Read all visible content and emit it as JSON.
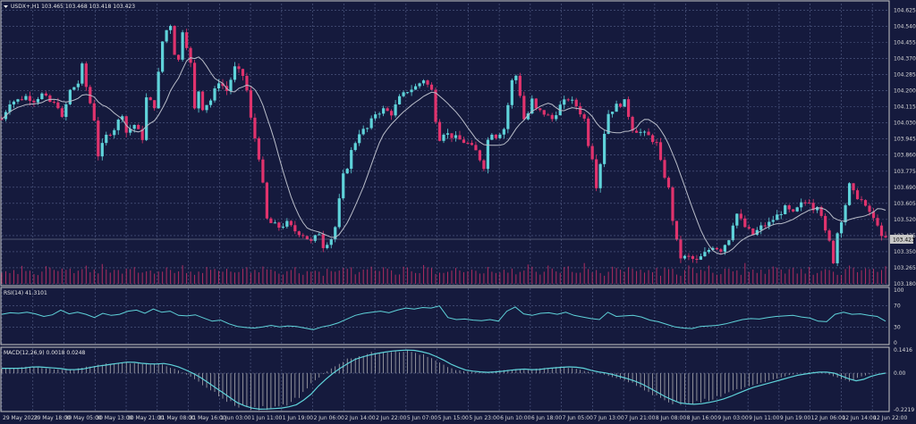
{
  "colors": {
    "background": "#151a3d",
    "frame": "#c8c8c8",
    "grid": "#56608a",
    "bull": "#5fd3da",
    "bear": "#e0336d",
    "ma": "#b9bdc9",
    "volume": "#e0336d",
    "rsi": "#5fd3da",
    "macd_line": "#5fd3da",
    "macd_hist": "#bfbfbf",
    "price_box": "#c8c8c8"
  },
  "price_panel": {
    "header": "USDX+,H1  103.465 103.468 103.418 103.423",
    "menu_icon": "triangle-down-icon",
    "current_price": "103.423",
    "y_ticks": [
      "104.625",
      "104.540",
      "104.455",
      "104.370",
      "104.285",
      "104.200",
      "104.115",
      "104.030",
      "103.945",
      "103.860",
      "103.775",
      "103.690",
      "103.605",
      "103.520",
      "103.435",
      "103.350",
      "103.265",
      "103.180"
    ]
  },
  "rsi_panel": {
    "header": "RSI(14) 41.3101",
    "y_ticks": [
      "100",
      "70",
      "30",
      "0"
    ]
  },
  "macd_panel": {
    "header": "MACD(12,26,9) 0.0018 0.0248",
    "y_ticks": [
      "0.1416",
      "0.00",
      "-0.2219"
    ]
  },
  "x_ticks": [
    "29 May 2023",
    "29 May 18:00",
    "30 May 05:00",
    "30 May 13:00",
    "30 May 21:00",
    "31 May 08:00",
    "31 May 16:00",
    "1 Jun 03:00",
    "1 Jun 11:00",
    "1 Jun 19:00",
    "2 Jun 06:00",
    "2 Jun 14:00",
    "2 Jun 22:00",
    "5 Jun 07:00",
    "5 Jun 15:00",
    "5 Jun 23:00",
    "6 Jun 10:00",
    "6 Jun 18:00",
    "7 Jun 05:00",
    "7 Jun 13:00",
    "7 Jun 21:00",
    "8 Jun 08:00",
    "8 Jun 16:00",
    "9 Jun 03:00",
    "9 Jun 11:00",
    "9 Jun 19:00",
    "12 Jun 06:00",
    "12 Jun 14:00",
    "12 Jun 22:00"
  ],
  "chart_data": {
    "type": "candlestick",
    "symbol": "USDX+",
    "timeframe": "H1",
    "ylim": [
      103.18,
      104.66
    ],
    "close_path": [
      [
        0,
        104.05
      ],
      [
        4,
        104.14
      ],
      [
        8,
        104.15
      ],
      [
        12,
        104.17
      ],
      [
        16,
        104.15
      ],
      [
        20,
        104.18
      ],
      [
        24,
        104.14
      ],
      [
        28,
        104.12
      ],
      [
        30,
        104.05
      ],
      [
        34,
        104.2
      ],
      [
        38,
        104.24
      ],
      [
        40,
        104.33
      ],
      [
        42,
        104.22
      ],
      [
        46,
        104.05
      ],
      [
        48,
        103.86
      ],
      [
        52,
        103.96
      ],
      [
        56,
        104.0
      ],
      [
        60,
        104.08
      ],
      [
        62,
        103.98
      ],
      [
        66,
        104.02
      ],
      [
        70,
        103.95
      ],
      [
        72,
        104.16
      ],
      [
        76,
        104.12
      ],
      [
        80,
        104.46
      ],
      [
        82,
        104.52
      ],
      [
        84,
        104.55
      ],
      [
        86,
        104.4
      ],
      [
        88,
        104.36
      ],
      [
        90,
        104.52
      ],
      [
        92,
        104.44
      ],
      [
        94,
        104.34
      ],
      [
        96,
        104.1
      ],
      [
        98,
        104.2
      ],
      [
        100,
        104.11
      ],
      [
        104,
        104.15
      ],
      [
        108,
        104.25
      ],
      [
        112,
        104.2
      ],
      [
        116,
        104.32
      ],
      [
        120,
        104.28
      ],
      [
        122,
        104.2
      ],
      [
        124,
        104.05
      ],
      [
        126,
        103.95
      ],
      [
        128,
        103.85
      ],
      [
        130,
        103.7
      ],
      [
        132,
        103.52
      ],
      [
        134,
        103.5
      ],
      [
        138,
        103.48
      ],
      [
        142,
        103.5
      ],
      [
        146,
        103.46
      ],
      [
        150,
        103.44
      ],
      [
        154,
        103.4
      ],
      [
        158,
        103.45
      ],
      [
        160,
        103.38
      ],
      [
        164,
        103.42
      ],
      [
        166,
        103.48
      ],
      [
        168,
        103.62
      ],
      [
        170,
        103.75
      ],
      [
        172,
        103.8
      ],
      [
        174,
        103.88
      ],
      [
        178,
        103.98
      ],
      [
        182,
        104.0
      ],
      [
        186,
        104.08
      ],
      [
        190,
        104.1
      ],
      [
        194,
        104.08
      ],
      [
        198,
        104.16
      ],
      [
        202,
        104.2
      ],
      [
        206,
        104.22
      ],
      [
        210,
        104.26
      ],
      [
        214,
        104.2
      ],
      [
        216,
        104.05
      ],
      [
        218,
        103.95
      ],
      [
        220,
        103.98
      ],
      [
        224,
        103.96
      ],
      [
        228,
        103.94
      ],
      [
        232,
        103.92
      ],
      [
        236,
        103.88
      ],
      [
        240,
        103.8
      ],
      [
        242,
        103.94
      ],
      [
        244,
        103.98
      ],
      [
        246,
        103.96
      ],
      [
        250,
        104.0
      ],
      [
        254,
        104.25
      ],
      [
        256,
        104.28
      ],
      [
        258,
        104.18
      ],
      [
        260,
        104.05
      ],
      [
        262,
        104.08
      ],
      [
        264,
        104.15
      ],
      [
        266,
        104.1
      ],
      [
        270,
        104.08
      ],
      [
        274,
        104.05
      ],
      [
        278,
        104.12
      ],
      [
        282,
        104.16
      ],
      [
        286,
        104.12
      ],
      [
        290,
        104.05
      ],
      [
        292,
        103.92
      ],
      [
        294,
        103.85
      ],
      [
        296,
        103.7
      ],
      [
        298,
        103.82
      ],
      [
        300,
        103.98
      ],
      [
        302,
        104.08
      ],
      [
        306,
        104.12
      ],
      [
        310,
        104.14
      ],
      [
        314,
        104.0
      ],
      [
        318,
        103.98
      ],
      [
        322,
        103.96
      ],
      [
        326,
        103.92
      ],
      [
        328,
        103.82
      ],
      [
        330,
        103.75
      ],
      [
        332,
        103.68
      ],
      [
        334,
        103.52
      ],
      [
        336,
        103.4
      ],
      [
        338,
        103.32
      ],
      [
        342,
        103.32
      ],
      [
        346,
        103.3
      ],
      [
        350,
        103.34
      ],
      [
        354,
        103.38
      ],
      [
        358,
        103.36
      ],
      [
        362,
        103.42
      ],
      [
        364,
        103.5
      ],
      [
        366,
        103.55
      ],
      [
        370,
        103.48
      ],
      [
        374,
        103.44
      ],
      [
        378,
        103.48
      ],
      [
        382,
        103.5
      ],
      [
        386,
        103.54
      ],
      [
        390,
        103.58
      ],
      [
        394,
        103.55
      ],
      [
        398,
        103.6
      ],
      [
        402,
        103.62
      ],
      [
        404,
        103.58
      ],
      [
        406,
        103.6
      ],
      [
        408,
        103.55
      ],
      [
        410,
        103.45
      ],
      [
        412,
        103.4
      ],
      [
        414,
        103.3
      ],
      [
        416,
        103.45
      ],
      [
        418,
        103.52
      ],
      [
        420,
        103.6
      ],
      [
        422,
        103.7
      ],
      [
        424,
        103.66
      ],
      [
        428,
        103.62
      ],
      [
        430,
        103.58
      ],
      [
        432,
        103.56
      ],
      [
        434,
        103.52
      ],
      [
        436,
        103.5
      ],
      [
        438,
        103.42
      ]
    ],
    "volume": [
      8,
      14,
      10,
      12,
      9,
      15,
      11,
      13,
      10,
      9,
      12,
      16,
      14,
      11,
      10,
      13,
      15,
      12,
      9,
      10,
      14,
      17,
      12,
      11,
      10,
      18,
      13,
      12,
      11,
      10,
      9,
      12,
      14,
      15,
      11,
      10,
      13,
      12,
      9,
      11
    ],
    "rsi": [
      54,
      57,
      56,
      58,
      55,
      50,
      53,
      62,
      55,
      58,
      54,
      48,
      56,
      52,
      54,
      60,
      62,
      56,
      64,
      58,
      60,
      52,
      51,
      53,
      47,
      41,
      43,
      36,
      31,
      29,
      28,
      30,
      33,
      30,
      32,
      31,
      28,
      25,
      30,
      33,
      38,
      45,
      52,
      56,
      58,
      60,
      57,
      62,
      66,
      64,
      67,
      66,
      70,
      48,
      44,
      45,
      43,
      42,
      44,
      41,
      60,
      68,
      55,
      52,
      56,
      57,
      54,
      58,
      52,
      49,
      46,
      44,
      58,
      50,
      51,
      52,
      49,
      43,
      40,
      35,
      30,
      28,
      27,
      31,
      32,
      33,
      36,
      40,
      44,
      46,
      45,
      48,
      50,
      51,
      52,
      49,
      47,
      41,
      40,
      54,
      58,
      54,
      55,
      52,
      50,
      41
    ],
    "macd": [
      0.03,
      0.03,
      0.04,
      0.035,
      0.03,
      0.02,
      0.025,
      0.04,
      0.05,
      0.06,
      0.07,
      0.06,
      0.055,
      0.06,
      0.04,
      0.01,
      -0.03,
      -0.08,
      -0.13,
      -0.18,
      -0.21,
      -0.22,
      -0.215,
      -0.21,
      -0.19,
      -0.14,
      -0.06,
      0.0,
      0.05,
      0.09,
      0.11,
      0.125,
      0.135,
      0.141,
      0.138,
      0.12,
      0.09,
      0.05,
      0.02,
      0.01,
      0.005,
      0.01,
      0.02,
      0.025,
      0.02,
      0.03,
      0.035,
      0.04,
      0.03,
      0.01,
      0.0,
      -0.02,
      -0.04,
      -0.07,
      -0.11,
      -0.15,
      -0.18,
      -0.19,
      -0.185,
      -0.17,
      -0.15,
      -0.12,
      -0.09,
      -0.07,
      -0.05,
      -0.03,
      -0.01,
      0.0,
      0.01,
      0.0,
      -0.03,
      -0.05,
      -0.02,
      0.0,
      0.002
    ],
    "series": [
      {
        "name": "RSI(14)",
        "last": 41.3101
      },
      {
        "name": "MACD(12,26,9)",
        "main": 0.0018,
        "signal": 0.0248
      }
    ],
    "rsi_levels": [
      70,
      30
    ],
    "macd_range": [
      -0.2219,
      0.1416
    ]
  }
}
